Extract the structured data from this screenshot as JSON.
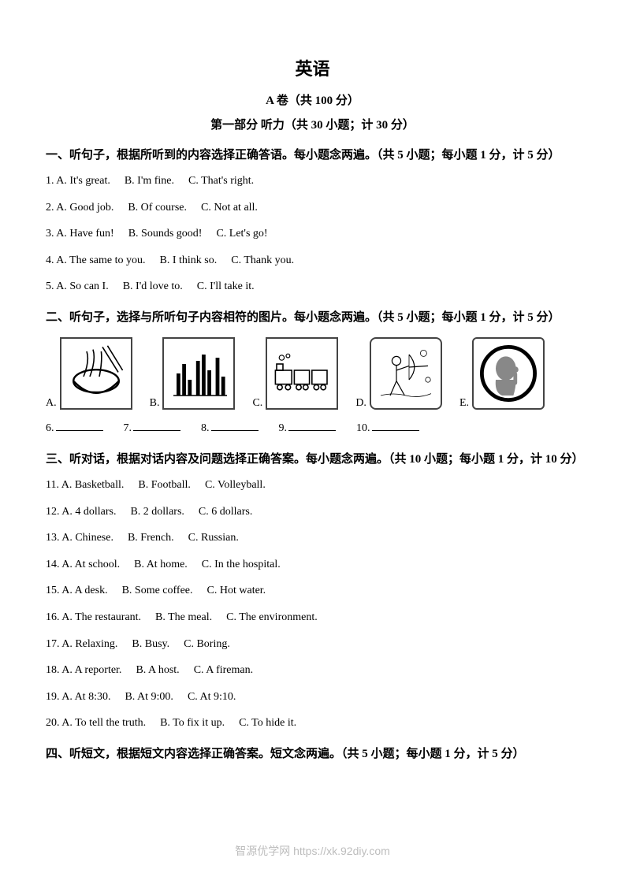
{
  "title": "英语",
  "subtitle1": "A 卷（共 100 分）",
  "subtitle2": "第一部分  听力（共 30 小题；计 30 分）",
  "section1": {
    "heading": "一、听句子，根据所听到的内容选择正确答语。每小题念两遍。（共 5 小题；每小题 1 分，计 5 分）",
    "questions": [
      {
        "num": "1.",
        "a": "A. It's great.",
        "b": "B. I'm fine.",
        "c": "C. That's right."
      },
      {
        "num": "2.",
        "a": "A. Good job.",
        "b": "B. Of course.",
        "c": "C. Not at all."
      },
      {
        "num": "3.",
        "a": "A. Have fun!",
        "b": "B. Sounds good!",
        "c": "C. Let's go!"
      },
      {
        "num": "4.",
        "a": "A. The same to you.",
        "b": "B. I think so.",
        "c": "C. Thank you."
      },
      {
        "num": "5.",
        "a": "A. So can I.",
        "b": "B. I'd love to.",
        "c": "C. I'll take it."
      }
    ]
  },
  "section2": {
    "heading": "二、听句子，选择与所听句子内容相符的图片。每小题念两遍。（共 5 小题；每小题 1 分，计 5 分）",
    "images": [
      "A.",
      "B.",
      "C.",
      "D.",
      "E."
    ],
    "blanks": [
      "6.",
      "7.",
      "8.",
      "9.",
      "10."
    ]
  },
  "section3": {
    "heading": "三、听对话，根据对话内容及问题选择正确答案。每小题念两遍。（共 10 小题；每小题 1 分，计 10 分）",
    "questions": [
      {
        "num": "11.",
        "a": "A. Basketball.",
        "b": "B. Football.",
        "c": "C. Volleyball."
      },
      {
        "num": "12.",
        "a": "A. 4 dollars.",
        "b": "B. 2 dollars.",
        "c": "C. 6 dollars."
      },
      {
        "num": "13.",
        "a": "A. Chinese.",
        "b": "B. French.",
        "c": "C. Russian."
      },
      {
        "num": "14.",
        "a": "A. At school.",
        "b": "B. At home.",
        "c": "C. In the hospital."
      },
      {
        "num": "15.",
        "a": "A. A desk.",
        "b": "B. Some coffee.",
        "c": "C. Hot water."
      },
      {
        "num": "16.",
        "a": "A. The restaurant.",
        "b": "B. The meal.",
        "c": "C. The environment."
      },
      {
        "num": "17.",
        "a": "A. Relaxing.",
        "b": "B. Busy.",
        "c": "C. Boring."
      },
      {
        "num": "18.",
        "a": "A. A reporter.",
        "b": "B. A host.",
        "c": "C. A fireman."
      },
      {
        "num": "19.",
        "a": "A. At 8:30.",
        "b": "B. At 9:00.",
        "c": "C. At 9:10."
      },
      {
        "num": "20.",
        "a": "A. To tell the truth.",
        "b": "B. To fix it up.",
        "c": "C. To hide it."
      }
    ]
  },
  "section4": {
    "heading": "四、听短文，根据短文内容选择正确答案。短文念两遍。（共 5 小题；每小题 1 分，计 5 分）"
  },
  "footer": "智源优学网 https://xk.92diy.com",
  "colors": {
    "text": "#000000",
    "background": "#ffffff",
    "footer": "#bdbdbd",
    "border": "#444444"
  }
}
